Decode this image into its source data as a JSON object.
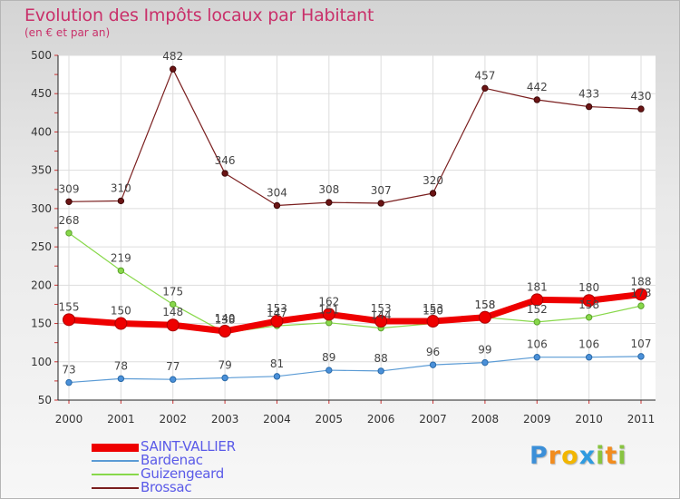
{
  "chart_data": {
    "type": "line",
    "title": "Evolution des Impôts locaux par Habitant",
    "subtitle": "(en € et par an)",
    "xlabel": "",
    "ylabel": "",
    "x": [
      "2000",
      "2001",
      "2002",
      "2003",
      "2004",
      "2005",
      "2006",
      "2007",
      "2008",
      "2009",
      "2010",
      "2011"
    ],
    "ylim": [
      50,
      500
    ],
    "yticks": [
      "50",
      "100",
      "150",
      "200",
      "250",
      "300",
      "350",
      "400",
      "450",
      "500"
    ],
    "legend_position": "bottom-left",
    "series": [
      {
        "name": "SAINT-VALLIER",
        "color": "#ee0000",
        "values": [
          155,
          150,
          148,
          140,
          153,
          162,
          153,
          153,
          158,
          181,
          180,
          188
        ]
      },
      {
        "name": "Bardenac",
        "color": "#5b9bd5",
        "values": [
          73,
          78,
          77,
          79,
          81,
          89,
          88,
          96,
          99,
          106,
          106,
          107
        ]
      },
      {
        "name": "Guizengeard",
        "color": "#88d84a",
        "values": [
          268,
          219,
          175,
          138,
          147,
          151,
          144,
          150,
          158,
          152,
          158,
          173
        ]
      },
      {
        "name": "Brossac",
        "color": "#7a1e1e",
        "values": [
          309,
          310,
          482,
          346,
          304,
          308,
          307,
          320,
          457,
          442,
          433,
          430
        ]
      }
    ]
  },
  "logo": {
    "letters": [
      "P",
      "r",
      "o",
      "x",
      "i",
      "t",
      "i"
    ],
    "colors": [
      "#3b8fd8",
      "#f28c1e",
      "#f2b600",
      "#2f9be0",
      "#88c440",
      "#f28c1e",
      "#88c440"
    ]
  }
}
